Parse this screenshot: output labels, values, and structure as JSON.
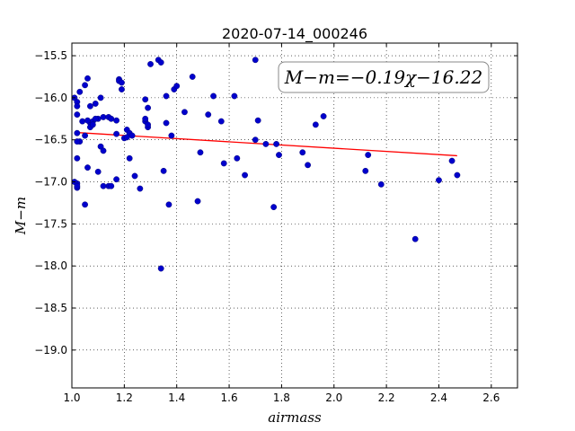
{
  "chart_data": {
    "type": "scatter",
    "title": "2020-07-14_000246",
    "xlabel": "airmass",
    "ylabel": "M−m",
    "xlim": [
      1.0,
      2.7
    ],
    "ylim": [
      -19.45,
      -15.35
    ],
    "y_inverted": false,
    "grid": true,
    "x_ticks": [
      1.0,
      1.2,
      1.4,
      1.6,
      1.8,
      2.0,
      2.2,
      2.4,
      2.6
    ],
    "x_tick_labels": [
      "1.0",
      "1.2",
      "1.4",
      "1.6",
      "1.8",
      "2.0",
      "2.2",
      "2.4",
      "2.6"
    ],
    "y_ticks": [
      -15.5,
      -16.0,
      -16.5,
      -17.0,
      -17.5,
      -18.0,
      -18.5,
      -19.0
    ],
    "y_tick_labels": [
      "−15.5",
      "−16.0",
      "−16.5",
      "−17.0",
      "−17.5",
      "−18.0",
      "−18.5",
      "−19.0"
    ],
    "annotation": "M−m=−0.19χ−16.22",
    "fit_line": {
      "slope": -0.19,
      "intercept": -16.22,
      "x_range": [
        1.01,
        2.47
      ],
      "color": "#ff0000"
    },
    "point_color": "#0000cc",
    "series": [
      {
        "x": [
          1.01,
          1.02,
          1.02,
          1.02,
          1.03,
          1.04,
          1.05,
          1.06,
          1.07,
          1.07,
          1.08,
          1.09,
          1.1,
          1.11,
          1.12,
          1.14,
          1.15,
          1.17,
          1.18,
          1.18,
          1.19,
          1.19,
          1.2,
          1.21,
          1.22,
          1.23,
          1.28,
          1.28,
          1.29,
          1.29,
          1.3,
          1.33,
          1.34,
          1.36,
          1.36,
          1.38,
          1.39,
          1.4,
          1.43,
          1.46,
          1.52,
          1.54,
          1.57,
          1.02,
          1.02,
          1.02,
          1.03,
          1.05,
          1.06,
          1.07,
          1.08,
          1.1,
          1.11,
          1.12,
          1.14,
          1.15,
          1.17,
          1.17,
          1.21,
          1.22,
          1.24,
          1.26,
          1.28,
          1.29,
          1.35,
          1.37,
          1.48,
          1.49,
          1.58,
          1.62,
          1.63,
          1.66,
          1.7,
          1.71,
          1.74,
          1.77,
          1.78,
          1.79,
          1.88,
          1.9,
          1.93,
          1.96,
          2.12,
          2.13,
          2.18,
          2.31,
          2.4,
          2.45,
          2.47,
          1.01,
          1.02,
          1.05,
          1.06,
          1.09,
          1.12,
          1.34,
          1.7,
          1.02,
          1.02
        ],
        "y": [
          -16.0,
          -16.05,
          -16.1,
          -16.2,
          -15.93,
          -16.28,
          -15.85,
          -15.77,
          -16.1,
          -16.3,
          -16.28,
          -16.07,
          -16.25,
          -16.0,
          -16.23,
          -16.23,
          -16.25,
          -16.27,
          -15.78,
          -15.8,
          -15.82,
          -15.9,
          -16.48,
          -16.38,
          -16.42,
          -16.45,
          -16.28,
          -16.02,
          -16.35,
          -16.12,
          -15.6,
          -15.55,
          -15.58,
          -16.3,
          -15.98,
          -16.45,
          -15.9,
          -15.86,
          -16.17,
          -15.75,
          -16.2,
          -15.98,
          -16.28,
          -16.72,
          -17.02,
          -17.07,
          -16.52,
          -17.27,
          -16.83,
          -16.35,
          -16.32,
          -16.88,
          -16.58,
          -16.63,
          -17.05,
          -17.05,
          -16.43,
          -16.97,
          -16.47,
          -16.72,
          -16.93,
          -17.08,
          -16.25,
          -16.32,
          -16.87,
          -17.27,
          -17.23,
          -16.65,
          -16.78,
          -15.98,
          -16.72,
          -16.92,
          -16.5,
          -16.27,
          -16.55,
          -17.3,
          -16.55,
          -16.68,
          -16.65,
          -16.8,
          -16.32,
          -16.22,
          -16.87,
          -16.68,
          -17.03,
          -17.68,
          -16.98,
          -16.75,
          -16.92,
          -17.0,
          -17.05,
          -16.45,
          -16.27,
          -16.25,
          -17.05,
          -18.03,
          -15.55,
          -16.52,
          -16.42
        ]
      }
    ]
  }
}
